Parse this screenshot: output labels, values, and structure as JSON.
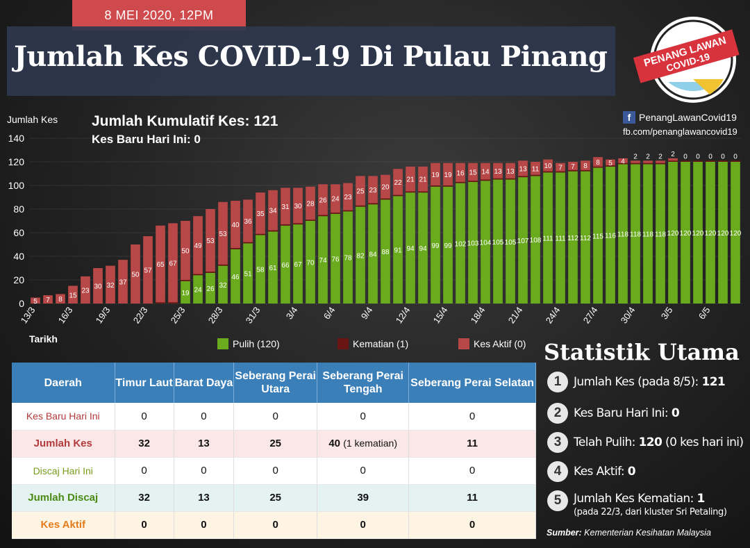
{
  "header": {
    "date_tab": "8 MEI 2020, 12PM",
    "title": "Jumlah Kes COVID-19 Di Pulau Pinang"
  },
  "logo": {
    "line1": "PENANG LAWAN",
    "line2": "COVID-19"
  },
  "social": {
    "fb_name": "PenangLawanCovid19",
    "fb_url": "fb.com/penanglawancovid19"
  },
  "summary": {
    "cumulative": "Jumlah Kumulatif Kes: 121",
    "new_today": "Kes Baru Hari Ini: 0"
  },
  "colors": {
    "recovered": "#6aab1e",
    "deaths": "#6b1414",
    "active": "#b84747",
    "table_header": "#3b7fb9"
  },
  "chart_data": {
    "type": "bar",
    "stacked": true,
    "ylabel": "Jumlah Kes",
    "xlabel": "Tarikh",
    "ylim": [
      0,
      140
    ],
    "yticks": [
      0,
      20,
      40,
      60,
      80,
      100,
      120,
      140
    ],
    "categories": [
      "13/3",
      "14/3",
      "15/3",
      "16/3",
      "17/3",
      "18/3",
      "19/3",
      "20/3",
      "21/3",
      "22/3",
      "23/3",
      "24/3",
      "25/3",
      "26/3",
      "27/3",
      "28/3",
      "29/3",
      "30/3",
      "31/3",
      "1/4",
      "2/4",
      "3/4",
      "4/4",
      "5/4",
      "6/4",
      "7/4",
      "8/4",
      "9/4",
      "10/4",
      "11/4",
      "12/4",
      "13/4",
      "14/4",
      "15/4",
      "16/4",
      "17/4",
      "18/4",
      "19/4",
      "20/4",
      "21/4",
      "22/4",
      "23/4",
      "24/4",
      "25/4",
      "26/4",
      "27/4",
      "28/4",
      "29/4",
      "30/4",
      "1/5",
      "2/5",
      "3/5",
      "4/5",
      "5/5",
      "6/5",
      "7/5",
      "8/5"
    ],
    "tick_labels": [
      "13/3",
      "16/3",
      "19/3",
      "22/3",
      "25/3",
      "28/3",
      "31/3",
      "3/4",
      "6/4",
      "9/4",
      "12/4",
      "15/4",
      "18/4",
      "21/4",
      "24/4",
      "27/4",
      "30/4",
      "3/5",
      "6/5"
    ],
    "series": [
      {
        "name": "Pulih (120)",
        "values": [
          0,
          0,
          0,
          0,
          0,
          0,
          0,
          0,
          0,
          0,
          0,
          0,
          19,
          24,
          26,
          32,
          46,
          51,
          58,
          61,
          66,
          67,
          70,
          74,
          76,
          78,
          82,
          84,
          88,
          91,
          94,
          94,
          99,
          99,
          102,
          103,
          104,
          105,
          105,
          107,
          108,
          111,
          111,
          112,
          112,
          115,
          116,
          118,
          118,
          118,
          118,
          120,
          120,
          120,
          120,
          120,
          120
        ]
      },
      {
        "name": "Kematian (1)",
        "values": [
          0,
          0,
          0,
          0,
          0,
          0,
          0,
          0,
          0,
          0,
          1,
          1,
          1,
          1,
          1,
          1,
          1,
          1,
          1,
          1,
          1,
          1,
          1,
          1,
          1,
          1,
          1,
          1,
          1,
          1,
          1,
          1,
          1,
          1,
          1,
          1,
          1,
          1,
          1,
          1,
          1,
          1,
          1,
          1,
          1,
          1,
          1,
          1,
          1,
          1,
          1,
          1,
          1,
          1,
          1,
          1,
          1
        ]
      },
      {
        "name": "Kes Aktif (0)",
        "values": [
          5,
          7,
          8,
          15,
          23,
          30,
          32,
          37,
          50,
          57,
          65,
          67,
          50,
          49,
          53,
          53,
          40,
          36,
          35,
          34,
          31,
          30,
          28,
          26,
          24,
          23,
          25,
          23,
          20,
          22,
          21,
          21,
          19,
          19,
          16,
          15,
          14,
          13,
          13,
          13,
          11,
          10,
          7,
          7,
          8,
          8,
          5,
          4,
          2,
          2,
          2,
          2,
          0,
          0,
          0,
          0,
          0
        ]
      }
    ],
    "data_labels_recovered": [
      "",
      "",
      "",
      "",
      "",
      "",
      "",
      "",
      "",
      "",
      "",
      "",
      "19",
      "24",
      "26",
      "32",
      "46",
      "51",
      "58",
      "61",
      "66",
      "67",
      "70",
      "74",
      "76",
      "78",
      "82",
      "84",
      "88",
      "91",
      "94",
      "94",
      "99",
      "99",
      "102",
      "103",
      "104",
      "105",
      "105",
      "107",
      "108",
      "111",
      "111",
      "112",
      "112",
      "115",
      "116",
      "118",
      "118",
      "118",
      "118",
      "120",
      "120",
      "120",
      "120",
      "120",
      "120"
    ],
    "data_labels_active": [
      "5",
      "7",
      "8",
      "15",
      "23",
      "30",
      "32",
      "37",
      "50",
      "57",
      "65",
      "67",
      "50",
      "49",
      "53",
      "53",
      "40",
      "36",
      "35",
      "34",
      "31",
      "30",
      "28",
      "26",
      "24",
      "23",
      "25",
      "23",
      "20",
      "22",
      "21",
      "21",
      "19",
      "19",
      "16",
      "15",
      "14",
      "13",
      "13",
      "13",
      "11",
      "10",
      "7",
      "7",
      "8",
      "8",
      "5",
      "4",
      "2",
      "2",
      "2",
      "2",
      "0",
      "0",
      "0",
      "0",
      "0"
    ]
  },
  "table": {
    "headers": [
      "Daerah",
      "Timur Laut",
      "Barat Daya",
      "Seberang Perai Utara",
      "Seberang Perai Tengah",
      "Seberang Perai Selatan"
    ],
    "rows": [
      {
        "label": "Kes Baru Hari Ini",
        "values": [
          "0",
          "0",
          "0",
          "0",
          "0"
        ]
      },
      {
        "label": "Jumlah Kes",
        "values": [
          "32",
          "13",
          "25",
          "40",
          "11"
        ],
        "note": "(1 kematian)"
      },
      {
        "label": "Discaj Hari Ini",
        "values": [
          "0",
          "0",
          "0",
          "0",
          "0"
        ]
      },
      {
        "label": "Jumlah Discaj",
        "values": [
          "32",
          "13",
          "25",
          "39",
          "11"
        ]
      },
      {
        "label": "Kes Aktif",
        "values": [
          "0",
          "0",
          "0",
          "0",
          "0"
        ]
      }
    ]
  },
  "stats": {
    "title": "Statistik Utama",
    "items": [
      {
        "num": "1",
        "text": "Jumlah Kes (pada 8/5): ",
        "bold": "121"
      },
      {
        "num": "2",
        "text": "Kes Baru Hari Ini: ",
        "bold": "0"
      },
      {
        "num": "3",
        "text": "Telah Pulih: ",
        "bold": "120",
        "tail": " (0 kes hari ini)"
      },
      {
        "num": "4",
        "text": "Kes Aktif: ",
        "bold": "0"
      },
      {
        "num": "5",
        "text": "Jumlah Kes Kematian: ",
        "bold": "1",
        "sub": "(pada 22/3, dari kluster Sri Petaling)"
      }
    ],
    "source_label": "Sumber:",
    "source_text": " Kementerian Kesihatan Malaysia"
  }
}
